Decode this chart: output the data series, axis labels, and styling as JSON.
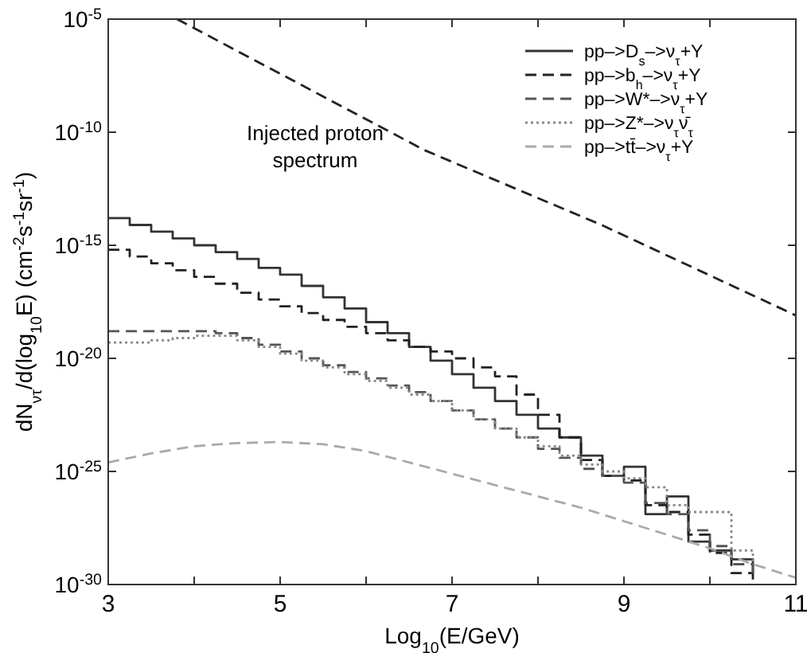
{
  "chart_data": {
    "type": "step",
    "xlabel": "Log$_{10}$(E/GeV)",
    "ylabel": "dN$_{ντ}$/d(log$_{10}$E)   (cm$^{-2}$s$^{-1}$sr$^{-1}$)",
    "log": "y",
    "xlim": [
      3,
      11
    ],
    "ylim": [
      1e-30,
      1e-05
    ],
    "xticks": [
      3,
      {
        "value": 4,
        "label": null
      },
      5,
      {
        "value": 6,
        "label": null
      },
      7,
      {
        "value": 8,
        "label": null
      },
      9,
      {
        "value": 10,
        "label": null
      },
      11
    ],
    "yticks": [
      {
        "value": 1e-30,
        "label": "10$^{-30}$"
      },
      {
        "value": 1e-25,
        "label": "10$^{-25}$"
      },
      {
        "value": 1e-20,
        "label": "10$^{-20}$"
      },
      {
        "value": 1e-15,
        "label": "10$^{-15}$"
      },
      {
        "value": 1e-10,
        "label": "10$^{-10}$"
      },
      {
        "value": 1e-05,
        "label": "10$^{-5}$"
      }
    ],
    "grid": false,
    "legend": "top right",
    "annotations": [
      "Injected proton spectrum"
    ],
    "x": [
      3,
      3.25,
      3.5,
      3.75,
      4,
      4.25,
      4.5,
      4.75,
      5,
      5.25,
      5.5,
      5.75,
      6,
      6.25,
      6.5,
      6.75,
      7,
      7.25,
      7.5,
      7.75,
      8,
      8.25,
      8.5,
      8.75,
      9,
      9.25,
      9.5,
      9.75,
      10,
      10.25,
      10.5
    ],
    "series": [
      {
        "name": "pp–>D$_{s}$–>ν$_{τ}$+Y",
        "color": "#333333",
        "line_style": "solid",
        "values": [
          1.6e-14,
          7.9e-15,
          4e-15,
          2e-15,
          1e-15,
          5e-16,
          2.5e-16,
          1e-16,
          5e-17,
          1.6e-17,
          5e-18,
          1.6e-18,
          4e-19,
          1.3e-19,
          3.2e-20,
          7.9e-21,
          2e-21,
          5e-22,
          1.3e-22,
          3.2e-23,
          7.9e-24,
          3.2e-24,
          5e-25,
          6.3e-26,
          1.6e-25,
          1.3e-27,
          7.9e-27,
          7.9e-29,
          3.2e-29,
          1.3e-29,
          3.2e-30
        ]
      },
      {
        "name": "pp–>b$_{h}$–>ν$_{τ}$+Y",
        "color": "#222222",
        "line_style": "dashed",
        "values": [
          6.3e-16,
          3.2e-16,
          1.6e-16,
          7.9e-17,
          4e-17,
          2e-17,
          7.9e-18,
          4e-18,
          2e-18,
          1e-18,
          5e-19,
          2.5e-19,
          1.3e-19,
          6.3e-20,
          3.2e-20,
          2e-20,
          1e-20,
          4e-21,
          1.6e-21,
          2.5e-22,
          3.2e-23,
          3.2e-24,
          3.2e-25,
          6.3e-26,
          4e-26,
          3.2e-27,
          1.6e-27,
          1.6e-28,
          2.5e-29,
          3.2e-30,
          1.6e-30
        ]
      },
      {
        "name": "pp–>W*–>ν$_{τ}$+Y",
        "color": "#555555",
        "line_style": "dashed",
        "values": [
          1.6e-19,
          1.6e-19,
          1.6e-19,
          1.6e-19,
          1.6e-19,
          1.3e-19,
          7.9e-20,
          4e-20,
          2e-20,
          1e-20,
          5e-21,
          2.5e-21,
          1.3e-21,
          6.3e-22,
          3.2e-22,
          1.3e-22,
          5e-23,
          2e-23,
          7.9e-24,
          3.2e-24,
          1e-24,
          4e-25,
          1.3e-25,
          6.3e-26,
          3.2e-26,
          4e-27,
          1.3e-27,
          2.5e-28,
          5e-29,
          7.9e-30,
          2e-30
        ]
      },
      {
        "name": "pp–>Z*–>ν$_{τ}$ν̄$_{τ}$",
        "color": "#888888",
        "line_style": "dotted",
        "values": [
          5e-20,
          5e-20,
          6.3e-20,
          7.9e-20,
          1e-19,
          1e-19,
          6.3e-20,
          3.2e-20,
          1.6e-20,
          7.9e-21,
          4e-21,
          2e-21,
          1e-21,
          5e-22,
          2.5e-22,
          1.3e-22,
          5e-23,
          2e-23,
          7.9e-24,
          3.2e-24,
          1.3e-24,
          5e-25,
          2e-25,
          1e-25,
          5e-26,
          2e-26,
          3.2e-27,
          1.6e-27,
          1.6e-27,
          3.2e-29,
          1e-29
        ]
      },
      {
        "name": "pp–>tt̄–>ν$_{τ}$+Y",
        "type": "line",
        "color": "#aaaaaa",
        "line_style": "dashed",
        "x": [
          3,
          3.5,
          4,
          4.5,
          5,
          5.5,
          6,
          6.5,
          7,
          7.5,
          8,
          8.5,
          9,
          9.5,
          10,
          10.5,
          11
        ],
        "values": [
          2.5e-25,
          6.3e-25,
          1.3e-24,
          1.8e-24,
          2e-24,
          1.6e-24,
          7.9e-25,
          2.5e-25,
          7.9e-26,
          2.5e-26,
          7.9e-27,
          2.5e-27,
          6.3e-28,
          1.6e-28,
          4e-29,
          7.9e-30,
          2e-30
        ]
      },
      {
        "type": "line",
        "color": "#222222",
        "line_style": "dashed",
        "x": [
          3.8,
          6.68,
          8.74,
          11
        ],
        "values": [
          1e-05,
          1.6e-11,
          7.9e-15,
          7.9e-19
        ]
      }
    ]
  }
}
